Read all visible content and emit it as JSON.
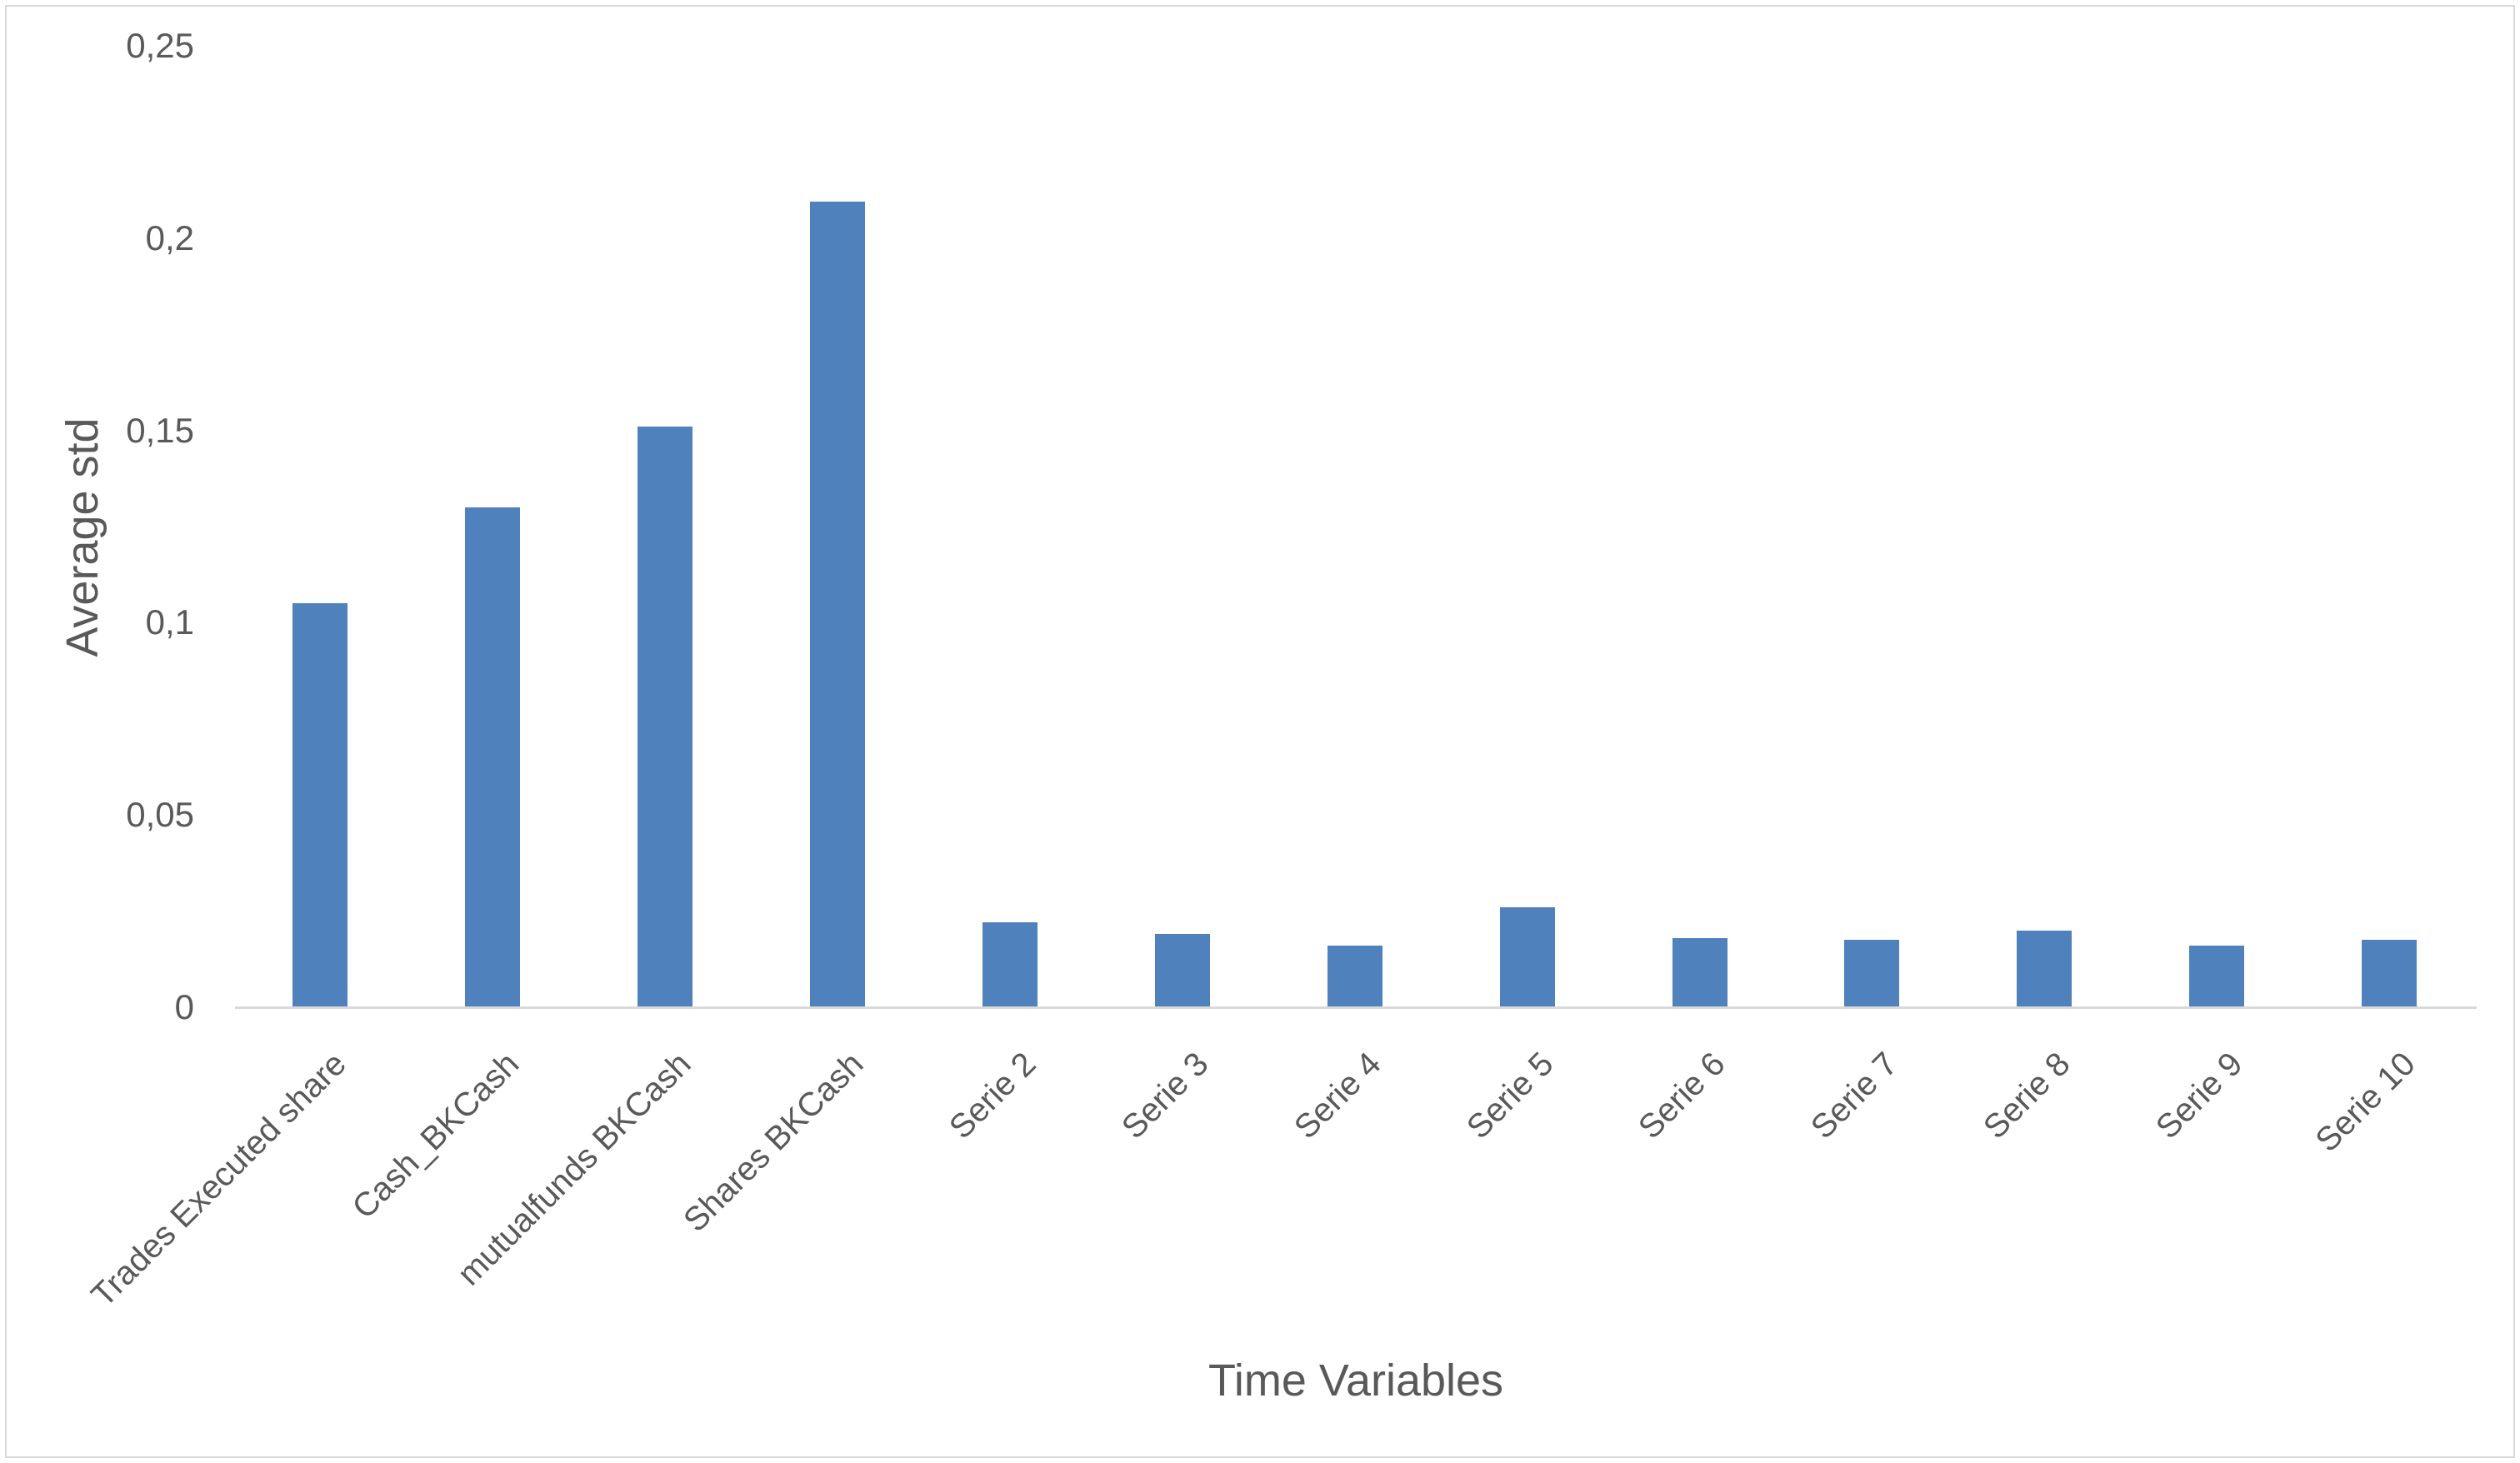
{
  "chart_data": {
    "type": "bar",
    "title": "",
    "categories": [
      "Trades Executed share",
      "Cash_BKCash",
      "mutualfunds BKCash",
      "Shares BKCash",
      "Serie 2",
      "Serie 3",
      "Serie 4",
      "Serie 5",
      "Serie 6",
      "Serie 7",
      "Serie 8",
      "Serie 9",
      "Serie 10"
    ],
    "values": [
      0.105,
      0.13,
      0.151,
      0.2095,
      0.022,
      0.019,
      0.016,
      0.026,
      0.018,
      0.0175,
      0.02,
      0.016,
      0.0175
    ],
    "xlabel": "Time Variables",
    "ylabel": "Average std",
    "ylim": [
      0,
      0.25
    ],
    "y_ticks": [
      {
        "v": 0,
        "label": "0"
      },
      {
        "v": 0.05,
        "label": "0,05"
      },
      {
        "v": 0.1,
        "label": "0,1"
      },
      {
        "v": 0.15,
        "label": "0,15"
      },
      {
        "v": 0.2,
        "label": "0,2"
      },
      {
        "v": 0.25,
        "label": "0,25"
      }
    ],
    "decimal_separator": ",",
    "grid": false,
    "legend": "none",
    "bar_color": "#4F81BD",
    "text_color": "#595959",
    "axis_line_color": "#D9D9D9"
  }
}
